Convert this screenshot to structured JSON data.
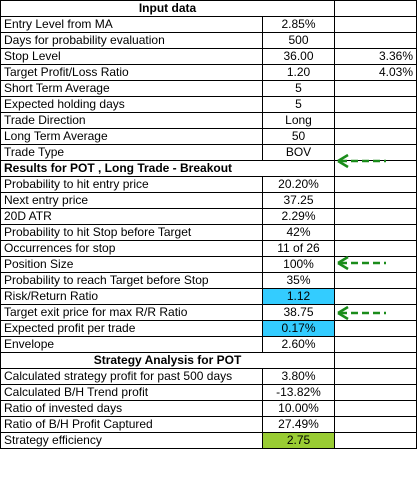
{
  "header": {
    "title": "Input data"
  },
  "input_rows": [
    {
      "label": "Entry Level from MA",
      "value": "2.85%",
      "extra": ""
    },
    {
      "label": "Days for probability evaluation",
      "value": "500",
      "extra": ""
    },
    {
      "label": "Stop Level",
      "value": "36.00",
      "extra": "3.36%"
    },
    {
      "label": "Target Profit/Loss Ratio",
      "value": "1.20",
      "extra": "4.03%"
    },
    {
      "label": "Short Term Average",
      "value": "5",
      "extra": ""
    },
    {
      "label": "Expected holding days",
      "value": "5",
      "extra": ""
    },
    {
      "label": "Trade Direction",
      "value": "Long",
      "extra": ""
    },
    {
      "label": "Long Term Average",
      "value": "50",
      "extra": ""
    },
    {
      "label": "Trade Type",
      "value": "BOV",
      "extra": ""
    }
  ],
  "results_header": {
    "title": "Results for POT , Long Trade - Breakout"
  },
  "result_rows": [
    {
      "label": "Probability to hit entry price",
      "value": "20.20%"
    },
    {
      "label": "Next entry price",
      "value": "37.25"
    },
    {
      "label": "20D ATR",
      "value": "2.29%"
    },
    {
      "label": "Probability to hit Stop before Target",
      "value": "42%"
    },
    {
      "label": "Occurrences for stop",
      "value": "11 of 26"
    },
    {
      "label": "Position Size",
      "value": "100%"
    },
    {
      "label": "Probability to reach Target before Stop",
      "value": "35%"
    },
    {
      "label": "Risk/Return Ratio",
      "value": "1.12"
    },
    {
      "label": "Target exit price for max R/R Ratio",
      "value": "38.75"
    },
    {
      "label": "Expected profit per trade",
      "value": "0.17%"
    },
    {
      "label": "Envelope",
      "value": "2.60%"
    }
  ],
  "strategy_header": {
    "title": "Strategy Analysis for POT"
  },
  "strategy_rows": [
    {
      "label": "Calculated strategy profit for past 500 days",
      "value": "3.80%"
    },
    {
      "label": "Calculated B/H Trend profit",
      "value": "-13.82%"
    },
    {
      "label": "Ratio of invested days",
      "value": "10.00%"
    },
    {
      "label": "Ratio of B/H Profit Captured",
      "value": "27.49%"
    },
    {
      "label": "Strategy efficiency",
      "value": "2.75"
    }
  ],
  "colors": {
    "highlight_blue": "#33ccff",
    "highlight_green": "#99cc33",
    "arrow_green": "#1a8c1a"
  },
  "icons": {
    "pointer": "green-dashed-arrow-icon"
  }
}
